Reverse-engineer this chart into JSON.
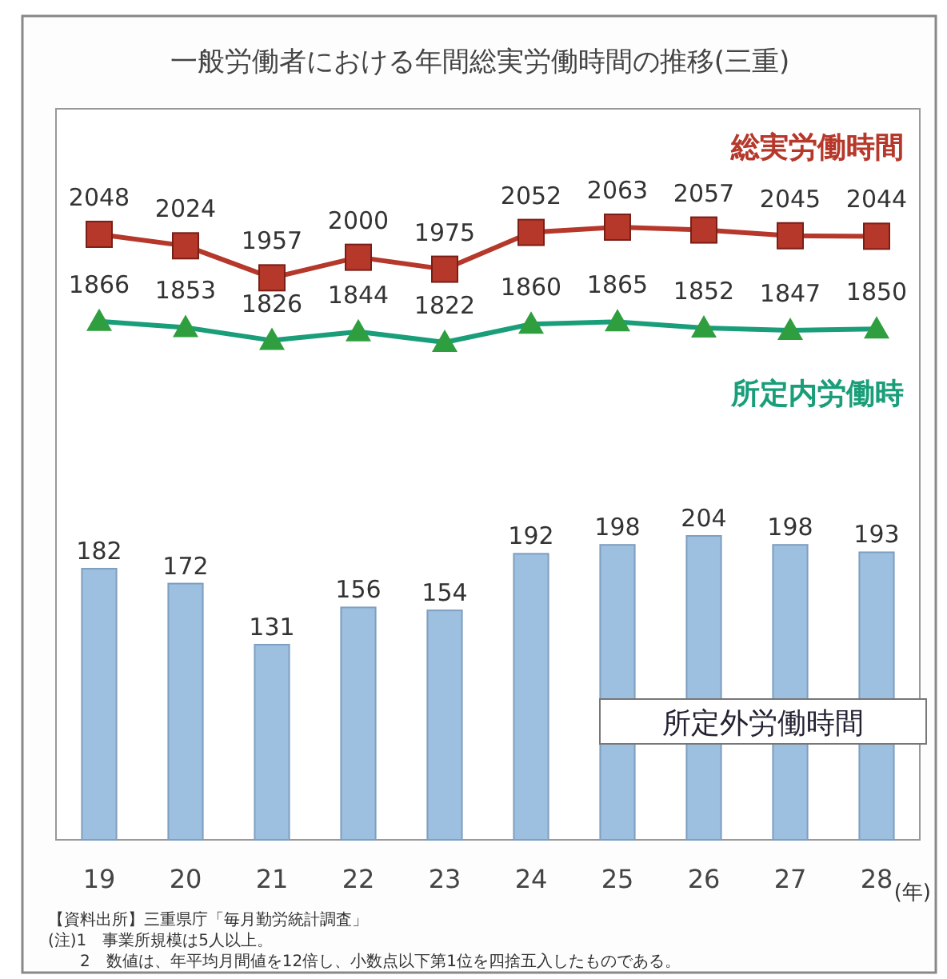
{
  "chart_data": [
    {
      "type": "line",
      "title": "一般労働者における年間総実労働時間の推移(三重)",
      "categories": [
        null,
        null,
        null,
        null,
        null,
        null,
        null,
        null,
        null,
        null
      ],
      "series": [
        {
          "name": "総実労働時間",
          "color": "#b5382b",
          "marker": "square",
          "values": [
            2048,
            2024,
            1957,
            2000,
            1975,
            2052,
            2063,
            2057,
            2045,
            2044
          ]
        },
        {
          "name": "所定内労働時",
          "color": "#1a9e7a",
          "marker": "triangle",
          "values": [
            1866,
            1853,
            1826,
            1844,
            1822,
            1860,
            1865,
            1852,
            1847,
            1850
          ]
        }
      ],
      "data_labels": true,
      "legend": false,
      "grid": false
    },
    {
      "type": "bar",
      "xlabel": "(年)",
      "categories": [
        "19",
        "20",
        "21",
        "22",
        "23",
        "24",
        "25",
        "26",
        "27",
        "28"
      ],
      "series": [
        {
          "name": "所定外労働時間",
          "color": "#9dbfe0",
          "values": [
            182,
            172,
            131,
            156,
            154,
            192,
            198,
            204,
            198,
            193
          ]
        }
      ],
      "data_labels": true,
      "legend": false,
      "grid": false,
      "annotations": [
        "【資料出所】三重県庁「毎月勤労統計調査」",
        "(注)1　事業所規模は5人以上。",
        "　　2　数値は、年平均月間値を12倍し、小数点以下第1位を四捨五入したものである。"
      ]
    }
  ]
}
